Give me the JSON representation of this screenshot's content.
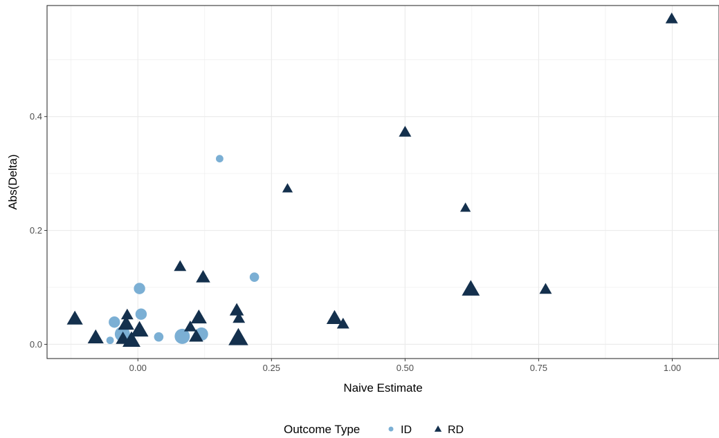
{
  "chart_data": {
    "type": "scatter",
    "title": "",
    "xlabel": "Naive Estimate",
    "ylabel": "Abs(Delta)",
    "xlim": [
      -0.17,
      1.0875
    ],
    "ylim": [
      -0.025,
      0.595
    ],
    "x_ticks": [
      0.0,
      0.25,
      0.5,
      0.75,
      1.0
    ],
    "x_tick_labels": [
      "0.00",
      "0.25",
      "0.50",
      "0.75",
      "1.00"
    ],
    "y_ticks": [
      0.0,
      0.2,
      0.4
    ],
    "y_tick_labels": [
      "0.0",
      "0.2",
      "0.4"
    ],
    "grid": true,
    "legend": {
      "title": "Outcome Type",
      "position": "bottom",
      "entries": [
        {
          "label": "ID",
          "shape": "circle",
          "color": "#7bafd4"
        },
        {
          "label": "RD",
          "shape": "triangle",
          "color": "#14304d"
        }
      ]
    },
    "series": [
      {
        "name": "ID",
        "shape": "circle",
        "color": "#7bafd4",
        "points": [
          {
            "x": 0.153,
            "y": 0.326,
            "size": 1
          },
          {
            "x": 0.218,
            "y": 0.118,
            "size": 2
          },
          {
            "x": 0.003,
            "y": 0.098,
            "size": 3
          },
          {
            "x": 0.006,
            "y": 0.053,
            "size": 3
          },
          {
            "x": -0.044,
            "y": 0.039,
            "size": 3
          },
          {
            "x": -0.052,
            "y": 0.007,
            "size": 1
          },
          {
            "x": -0.029,
            "y": 0.018,
            "size": 5
          },
          {
            "x": 0.039,
            "y": 0.013,
            "size": 2
          },
          {
            "x": 0.083,
            "y": 0.014,
            "size": 5
          },
          {
            "x": 0.119,
            "y": 0.018,
            "size": 4
          }
        ]
      },
      {
        "name": "RD",
        "shape": "triangle",
        "color": "#14304d",
        "points": [
          {
            "x": 0.999,
            "y": 0.571,
            "size": 2
          },
          {
            "x": 0.5,
            "y": 0.372,
            "size": 2
          },
          {
            "x": 0.28,
            "y": 0.273,
            "size": 1
          },
          {
            "x": 0.613,
            "y": 0.239,
            "size": 1
          },
          {
            "x": 0.079,
            "y": 0.136,
            "size": 2
          },
          {
            "x": 0.122,
            "y": 0.117,
            "size": 3
          },
          {
            "x": 0.623,
            "y": 0.096,
            "size": 5
          },
          {
            "x": 0.763,
            "y": 0.096,
            "size": 2
          },
          {
            "x": 0.185,
            "y": 0.059,
            "size": 3
          },
          {
            "x": 0.189,
            "y": 0.045,
            "size": 2
          },
          {
            "x": -0.118,
            "y": 0.044,
            "size": 4
          },
          {
            "x": 0.368,
            "y": 0.045,
            "size": 4
          },
          {
            "x": 0.384,
            "y": 0.035,
            "size": 2
          },
          {
            "x": 0.114,
            "y": 0.046,
            "size": 4
          },
          {
            "x": -0.02,
            "y": 0.051,
            "size": 2
          },
          {
            "x": -0.022,
            "y": 0.035,
            "size": 4
          },
          {
            "x": 0.098,
            "y": 0.03,
            "size": 2
          },
          {
            "x": 0.003,
            "y": 0.024,
            "size": 5
          },
          {
            "x": -0.079,
            "y": 0.011,
            "size": 4
          },
          {
            "x": -0.028,
            "y": 0.009,
            "size": 3
          },
          {
            "x": -0.012,
            "y": 0.006,
            "size": 5
          },
          {
            "x": 0.109,
            "y": 0.013,
            "size": 3
          },
          {
            "x": 0.188,
            "y": 0.01,
            "size": 6
          }
        ]
      }
    ]
  }
}
